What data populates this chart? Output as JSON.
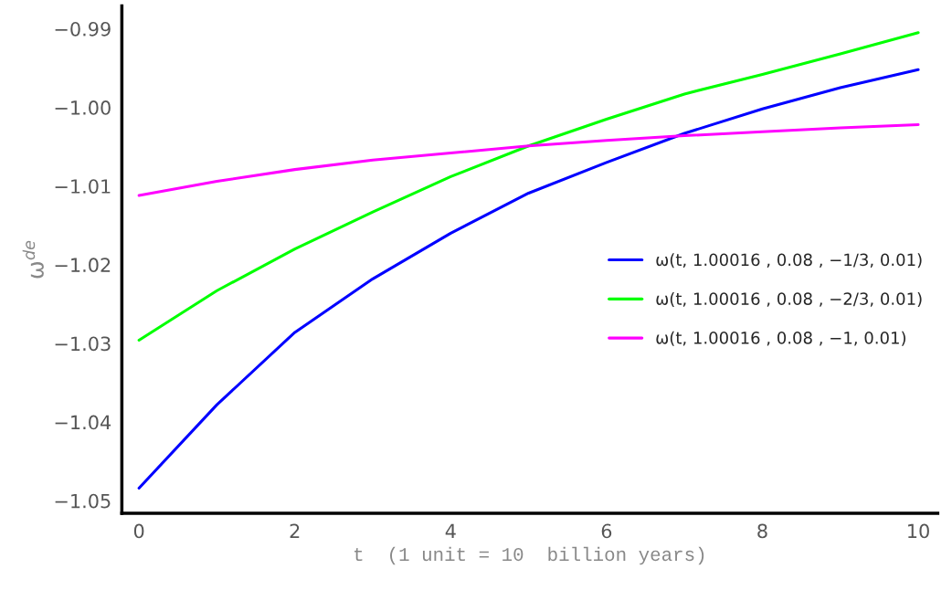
{
  "chart_data": {
    "type": "line",
    "xlabel": "t  (1 unit = 10  billion years)",
    "ylabel": "ω$^{de}$",
    "x": [
      0,
      1,
      2,
      3,
      4,
      5,
      6,
      7,
      8,
      9,
      10
    ],
    "series": [
      {
        "name": "ω(t, 1.00016 , 0.08 , −1/3, 0.01)",
        "color": "#0000ff",
        "values": [
          -1.0484,
          -1.0378,
          -1.0286,
          -1.0218,
          -1.016,
          -1.0109,
          -1.007,
          -1.0033,
          -1.0002,
          -0.9975,
          -0.9952
        ]
      },
      {
        "name": "ω(t, 1.00016 , 0.08 , −2/3, 0.01)",
        "color": "#00ff00",
        "values": [
          -1.0296,
          -1.0233,
          -1.018,
          -1.0133,
          -1.0088,
          -1.0049,
          -1.0015,
          -0.9983,
          -0.9958,
          -0.9932,
          -0.9905
        ]
      },
      {
        "name": "ω(t, 1.00016 , 0.08 , −1, 0.01)",
        "color": "#ff00ff",
        "values": [
          -1.0112,
          -1.0094,
          -1.0079,
          -1.0067,
          -1.0058,
          -1.0049,
          -1.0042,
          -1.0036,
          -1.0031,
          -1.0026,
          -1.0022
        ]
      }
    ],
    "xlim": [
      -0.22,
      10.25
    ],
    "ylim": [
      -1.0516,
      -0.9871
    ],
    "xticks": [
      0,
      2,
      4,
      6,
      8,
      10
    ],
    "yticks": [
      {
        "value": -1.05,
        "label": "−1.05"
      },
      {
        "value": -1.04,
        "label": "−1.04"
      },
      {
        "value": -1.03,
        "label": "−1.03"
      },
      {
        "value": -1.02,
        "label": "−1.02"
      },
      {
        "value": -1.01,
        "label": "−1.01"
      },
      {
        "value": -1.0,
        "label": "−1.00"
      },
      {
        "value": -0.99,
        "label": "−0.99"
      }
    ],
    "grid": false,
    "legend": "right",
    "marker": "none",
    "line_style": "solid"
  }
}
